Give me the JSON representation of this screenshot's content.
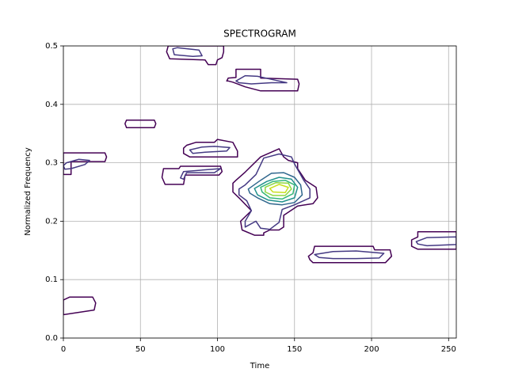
{
  "chart_data": {
    "type": "contour",
    "title": "SPECTROGRAM",
    "xlabel": "Time",
    "ylabel": "Normalized Frequency",
    "xlim": [
      0,
      255
    ],
    "ylim": [
      0,
      0.5
    ],
    "xticks": [
      0,
      50,
      100,
      150,
      200,
      250
    ],
    "yticks": [
      {
        "value": 0,
        "label": "0.0"
      },
      0.1,
      0.2,
      0.3,
      0.4,
      0.5
    ],
    "grid": true,
    "contours": [
      {
        "color": "#440154",
        "x": [
          68,
          67,
          69,
          92,
          94,
          99,
          100,
          103,
          104,
          104
        ],
        "y": [
          0.5,
          0.49,
          0.478,
          0.476,
          0.468,
          0.468,
          0.476,
          0.48,
          0.49,
          0.5
        ]
      },
      {
        "color": "#443983",
        "x": [
          71,
          72,
          84,
          90,
          88,
          74
        ],
        "y": [
          0.495,
          0.485,
          0.482,
          0.483,
          0.493,
          0.497
        ]
      },
      {
        "color": "#440154",
        "x": [
          106,
          107,
          112,
          112,
          128,
          128,
          152,
          153,
          152,
          128,
          118,
          110,
          107
        ],
        "y": [
          0.44,
          0.445,
          0.446,
          0.46,
          0.46,
          0.445,
          0.443,
          0.435,
          0.423,
          0.423,
          0.43,
          0.438,
          0.44
        ]
      },
      {
        "color": "#443983",
        "x": [
          112,
          118,
          126,
          140,
          145,
          135,
          122,
          114
        ],
        "y": [
          0.44,
          0.449,
          0.448,
          0.44,
          0.437,
          0.437,
          0.435,
          0.437
        ]
      },
      {
        "color": "#440154",
        "x": [
          41,
          59,
          60,
          59,
          41,
          40
        ],
        "y": [
          0.373,
          0.373,
          0.367,
          0.36,
          0.36,
          0.367
        ]
      },
      {
        "color": "#440154",
        "x": [
          0,
          27,
          28,
          27,
          5,
          5,
          0
        ],
        "y": [
          0.317,
          0.317,
          0.31,
          0.302,
          0.302,
          0.28,
          0.28
        ]
      },
      {
        "color": "#443983",
        "x": [
          0,
          2,
          10,
          17,
          14,
          5,
          1
        ],
        "y": [
          0.295,
          0.3,
          0.306,
          0.304,
          0.297,
          0.29,
          0.289
        ]
      },
      {
        "color": "#440154",
        "x": [
          80,
          86,
          98,
          100,
          110,
          111,
          113,
          113,
          102,
          96,
          82,
          78,
          78
        ],
        "y": [
          0.33,
          0.335,
          0.335,
          0.34,
          0.335,
          0.33,
          0.32,
          0.31,
          0.31,
          0.31,
          0.31,
          0.316,
          0.325
        ]
      },
      {
        "color": "#443983",
        "x": [
          82,
          90,
          98,
          108,
          106,
          92,
          84
        ],
        "y": [
          0.322,
          0.327,
          0.328,
          0.326,
          0.32,
          0.318,
          0.316
        ]
      },
      {
        "color": "#440154",
        "x": [
          65,
          75,
          76,
          102,
          103,
          101,
          79,
          78,
          66,
          64
        ],
        "y": [
          0.29,
          0.29,
          0.294,
          0.294,
          0.285,
          0.279,
          0.279,
          0.263,
          0.263,
          0.275
        ]
      },
      {
        "color": "#443983",
        "x": [
          76,
          78,
          102,
          98,
          80,
          78
        ],
        "y": [
          0.274,
          0.285,
          0.29,
          0.283,
          0.283,
          0.272
        ]
      },
      {
        "color": "#440154",
        "x": [
          112,
          118,
          128,
          140,
          143,
          146,
          152,
          152,
          157,
          164,
          165,
          162,
          152,
          143,
          143,
          140,
          134,
          130,
          130,
          124,
          116,
          115,
          122,
          114,
          110,
          110
        ],
        "y": [
          0.27,
          0.284,
          0.31,
          0.324,
          0.31,
          0.304,
          0.3,
          0.29,
          0.27,
          0.258,
          0.24,
          0.23,
          0.226,
          0.21,
          0.19,
          0.185,
          0.185,
          0.18,
          0.176,
          0.176,
          0.185,
          0.2,
          0.218,
          0.24,
          0.25,
          0.265
        ]
      },
      {
        "color": "#443983",
        "x": [
          118,
          125,
          130,
          140,
          148,
          150,
          156,
          160,
          160,
          150,
          142,
          140,
          134,
          128,
          125,
          118,
          118,
          122,
          119,
          114,
          114
        ],
        "y": [
          0.262,
          0.28,
          0.308,
          0.315,
          0.31,
          0.298,
          0.27,
          0.255,
          0.24,
          0.228,
          0.22,
          0.198,
          0.186,
          0.188,
          0.2,
          0.19,
          0.2,
          0.218,
          0.235,
          0.245,
          0.255
        ]
      },
      {
        "color": "#31688e",
        "x": [
          120,
          128,
          135,
          143,
          150,
          154,
          155,
          150,
          142,
          134,
          126,
          121
        ],
        "y": [
          0.255,
          0.27,
          0.282,
          0.283,
          0.275,
          0.262,
          0.245,
          0.232,
          0.228,
          0.23,
          0.24,
          0.248
        ]
      },
      {
        "color": "#21918c",
        "x": [
          124,
          132,
          140,
          148,
          152,
          150,
          142,
          133,
          126
        ],
        "y": [
          0.256,
          0.268,
          0.275,
          0.272,
          0.258,
          0.24,
          0.233,
          0.236,
          0.245
        ]
      },
      {
        "color": "#35b779",
        "x": [
          128,
          136,
          144,
          150,
          149,
          142,
          134,
          129
        ],
        "y": [
          0.258,
          0.268,
          0.27,
          0.262,
          0.247,
          0.238,
          0.24,
          0.25
        ]
      },
      {
        "color": "#90d743",
        "x": [
          131,
          138,
          146,
          148,
          144,
          136,
          131
        ],
        "y": [
          0.258,
          0.266,
          0.265,
          0.255,
          0.244,
          0.244,
          0.25
        ]
      },
      {
        "color": "#c8e020",
        "x": [
          134,
          140,
          146,
          144,
          136
        ],
        "y": [
          0.256,
          0.263,
          0.258,
          0.249,
          0.25
        ]
      },
      {
        "color": "#440154",
        "x": [
          159,
          162,
          163,
          201,
          202,
          212,
          213,
          209,
          162,
          160
        ],
        "y": [
          0.14,
          0.146,
          0.157,
          0.157,
          0.151,
          0.151,
          0.14,
          0.129,
          0.129,
          0.134
        ]
      },
      {
        "color": "#443983",
        "x": [
          163,
          175,
          190,
          208,
          205,
          190,
          175,
          166
        ],
        "y": [
          0.143,
          0.148,
          0.149,
          0.145,
          0.137,
          0.136,
          0.136,
          0.138
        ]
      },
      {
        "color": "#440154",
        "x": [
          226,
          230,
          230,
          255,
          255,
          230,
          226
        ],
        "y": [
          0.168,
          0.173,
          0.182,
          0.182,
          0.152,
          0.152,
          0.157
        ]
      },
      {
        "color": "#443983",
        "x": [
          229,
          236,
          255,
          255,
          236,
          230
        ],
        "y": [
          0.165,
          0.172,
          0.173,
          0.16,
          0.158,
          0.161
        ]
      },
      {
        "color": "#440154",
        "x": [
          0,
          4,
          19,
          21,
          20,
          0
        ],
        "y": [
          0.065,
          0.07,
          0.07,
          0.06,
          0.048,
          0.04
        ]
      }
    ]
  }
}
